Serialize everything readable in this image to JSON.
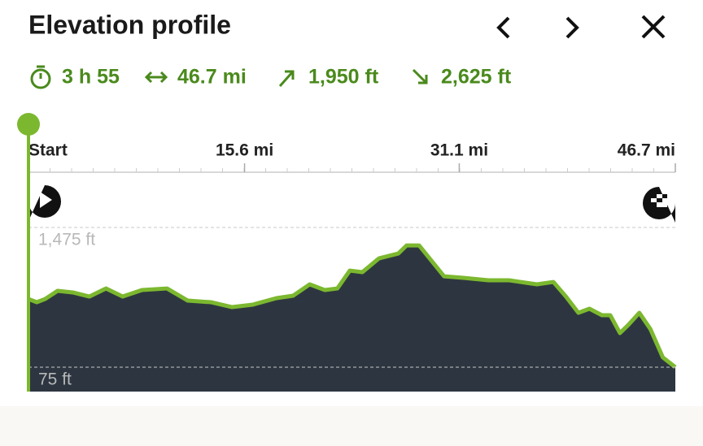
{
  "header": {
    "title": "Elevation profile"
  },
  "stats": {
    "duration": "3 h 55",
    "distance": "46.7 mi",
    "ascent": "1,950 ft",
    "descent": "2,625 ft"
  },
  "profile": {
    "type": "area",
    "xticks": [
      {
        "value": 0,
        "label": "Start"
      },
      {
        "value": 15.6,
        "label": "15.6 mi"
      },
      {
        "value": 31.1,
        "label": "31.1 mi"
      },
      {
        "value": 46.7,
        "label": "46.7 mi"
      }
    ],
    "yticks": [
      {
        "value": 1475,
        "label": "1,475 ft"
      },
      {
        "value": 75,
        "label": "75 ft"
      }
    ],
    "color": "#7cb82f",
    "fill": "#2d3640",
    "x": [
      0,
      0.6,
      1.2,
      2.1,
      3.2,
      4.4,
      5.6,
      6.8,
      8.2,
      10.0,
      11.5,
      13.2,
      14.7,
      16.2,
      17.9,
      19.1,
      20.3,
      21.4,
      22.3,
      23.2,
      24.1,
      25.3,
      26.7,
      27.3,
      28.2,
      30.0,
      31.4,
      33.2,
      34.7,
      36.7,
      37.9,
      38.8,
      39.7,
      40.5,
      41.4,
      42.0,
      42.7,
      43.3,
      44.1,
      44.9,
      45.8,
      46.7
    ],
    "values": [
      758,
      726,
      758,
      840,
      824,
      783,
      864,
      783,
      848,
      864,
      742,
      726,
      677,
      702,
      767,
      791,
      905,
      848,
      864,
      1043,
      1027,
      1165,
      1214,
      1295,
      1295,
      986,
      970,
      946,
      946,
      905,
      929,
      783,
      620,
      661,
      596,
      596,
      417,
      498,
      620,
      457,
      173,
      75
    ]
  }
}
